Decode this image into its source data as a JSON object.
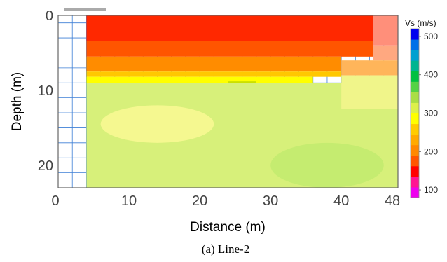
{
  "chart_data": {
    "type": "heatmap",
    "title": "",
    "xlabel": "Distance (m)",
    "ylabel": "Depth (m)",
    "xlim": [
      0,
      48
    ],
    "ylim": [
      0,
      23
    ],
    "y_inverted": true,
    "x_ticks": [
      "0",
      "10",
      "20",
      "30",
      "40",
      "48"
    ],
    "x_tick_values": [
      0,
      10,
      20,
      30,
      40,
      48
    ],
    "y_ticks": [
      "0",
      "10",
      "20"
    ],
    "y_tick_values": [
      0,
      10,
      20
    ],
    "data_x_range": [
      4,
      48
    ],
    "data_depth_range": [
      0,
      23
    ],
    "colorbar": {
      "title": "Vs (m/s)",
      "range": [
        80,
        520
      ],
      "ticks": [
        100,
        200,
        300,
        400,
        500
      ],
      "colors": [
        "#ee00ee",
        "#ff1493",
        "#ff0000",
        "#ff5500",
        "#ff8800",
        "#ffaa00",
        "#ffcc00",
        "#ffff00",
        "#ddf04a",
        "#aade44",
        "#55d244",
        "#00c040",
        "#00b490",
        "#00a0d0",
        "#0070e8",
        "#0000ee"
      ]
    },
    "layers": [
      {
        "x_from": 4,
        "x_to": 44.5,
        "depth_top": 0,
        "depth_bottom": 3.4,
        "vs": 180,
        "color": "#ff2800"
      },
      {
        "x_from": 44.5,
        "x_to": 48,
        "depth_top": 0,
        "depth_bottom": 4,
        "vs": 170,
        "color": "#ff8f7a"
      },
      {
        "x_from": 4,
        "x_to": 44.5,
        "depth_top": 3.4,
        "depth_bottom": 5.5,
        "vs": 200,
        "color": "#ff5500"
      },
      {
        "x_from": 44.5,
        "x_to": 48,
        "depth_top": 4,
        "depth_bottom": 6,
        "vs": 190,
        "color": "#ffa880"
      },
      {
        "x_from": 4,
        "x_to": 40,
        "depth_top": 5.5,
        "depth_bottom": 7.5,
        "vs": 215,
        "color": "#ff8c00"
      },
      {
        "x_from": 40,
        "x_to": 48,
        "depth_top": 6,
        "depth_bottom": 8,
        "vs": 225,
        "color": "#ffb55a"
      },
      {
        "x_from": 4,
        "x_to": 40,
        "depth_top": 7.5,
        "depth_bottom": 8.2,
        "vs": 235,
        "color": "#ffc800"
      },
      {
        "x_from": 4,
        "x_to": 36,
        "depth_top": 8.2,
        "depth_bottom": 9,
        "vs": 250,
        "color": "#ffff00"
      },
      {
        "x_from": 24,
        "x_to": 28,
        "depth_top": 8.8,
        "depth_bottom": 10.5,
        "vs": 280,
        "color": "#cce000"
      },
      {
        "x_from": 4,
        "x_to": 48,
        "depth_top": 9,
        "depth_bottom": 23,
        "vs": 285,
        "color": "#d7f07a"
      },
      {
        "x_from": 6,
        "x_to": 22,
        "depth_top": 12,
        "depth_bottom": 17,
        "vs": 265,
        "color": "#f5f890"
      },
      {
        "x_from": 40,
        "x_to": 48,
        "depth_top": 8,
        "depth_bottom": 12.5,
        "vs": 260,
        "color": "#f0f58a"
      },
      {
        "x_from": 30,
        "x_to": 46,
        "depth_top": 17,
        "depth_bottom": 23,
        "vs": 305,
        "color": "#c5ec70"
      }
    ],
    "caption": "(a) Line-2"
  }
}
